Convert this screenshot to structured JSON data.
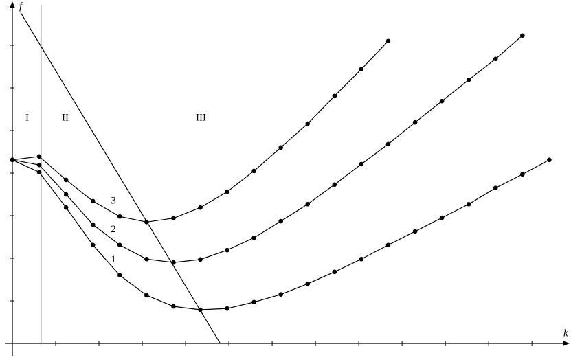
{
  "chart_data": {
    "type": "line",
    "y_label": "f",
    "x_label": "k",
    "region_labels": [
      "I",
      "II",
      "III"
    ],
    "x": [
      0,
      0.62,
      1.24,
      1.86,
      2.48,
      3.1,
      3.72,
      4.34,
      4.96,
      5.58,
      6.2,
      6.82,
      7.44,
      8.06,
      8.68,
      9.3,
      9.92,
      10.54,
      11.16,
      11.78,
      12.4
    ],
    "series": [
      {
        "name": "1",
        "color": "#000000",
        "values": [
          4.31,
          4.02,
          3.19,
          2.31,
          1.6,
          1.13,
          0.87,
          0.79,
          0.82,
          0.97,
          1.15,
          1.4,
          1.68,
          1.98,
          2.31,
          2.63,
          2.95,
          3.27,
          3.65,
          3.97,
          4.31
        ]
      },
      {
        "name": "2",
        "color": "#000000",
        "values": [
          4.31,
          4.19,
          3.5,
          2.79,
          2.31,
          1.98,
          1.9,
          1.97,
          2.19,
          2.48,
          2.87,
          3.27,
          3.73,
          4.21,
          4.68,
          5.19,
          5.69,
          6.19,
          6.68,
          7.23,
          null
        ]
      },
      {
        "name": "3",
        "color": "#000000",
        "values": [
          4.31,
          4.39,
          3.84,
          3.34,
          2.98,
          2.85,
          2.94,
          3.19,
          3.56,
          4.05,
          4.6,
          5.16,
          5.81,
          6.44,
          7.1,
          null,
          null,
          null,
          null,
          null,
          null
        ]
      }
    ],
    "boundary_x": 0.66,
    "slant_line": {
      "x": [
        0.19,
        4.8
      ],
      "y": [
        7.77,
        0
      ]
    },
    "xlim": [
      0,
      12.6
    ],
    "ylim": [
      0,
      8
    ],
    "xticks": [
      1,
      2,
      3,
      4,
      5,
      6,
      7,
      8,
      9,
      10,
      11,
      12
    ],
    "yticks": [
      1,
      2,
      3,
      4,
      5,
      6,
      7
    ]
  }
}
